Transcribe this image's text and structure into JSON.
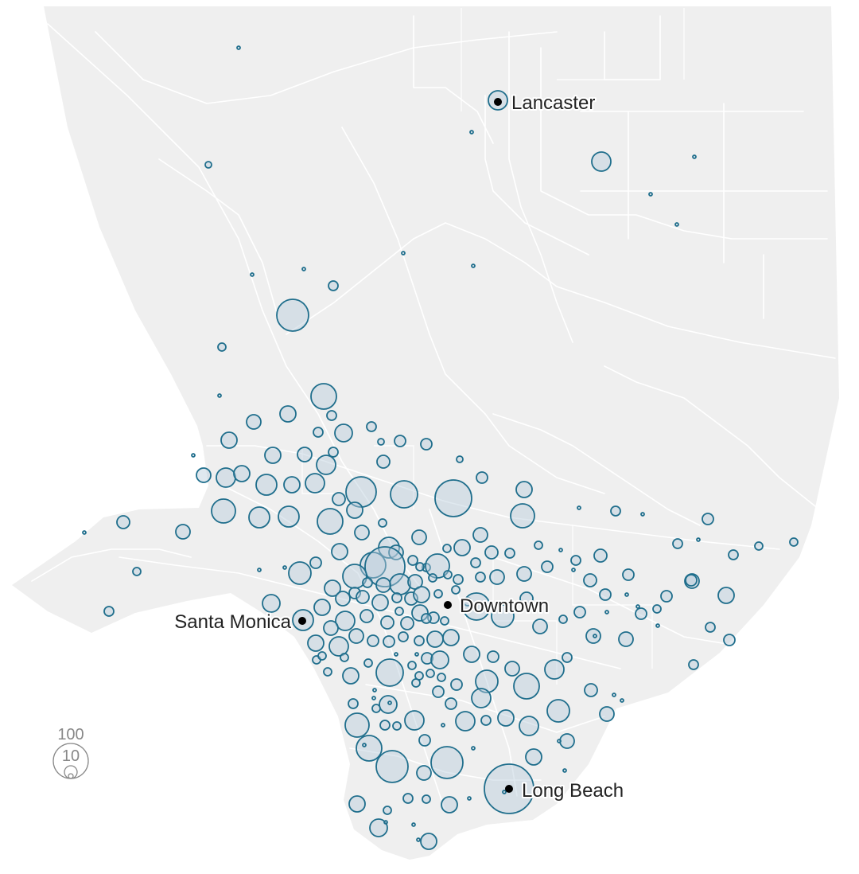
{
  "map": {
    "cities": [
      {
        "name": "Lancaster",
        "label": "Lancaster"
      },
      {
        "name": "Santa Monica",
        "label": "Santa Monica"
      },
      {
        "name": "Downtown",
        "label": "Downtown"
      },
      {
        "name": "Long Beach",
        "label": "Long Beach"
      }
    ],
    "legend": {
      "values": [
        "100",
        "10"
      ]
    },
    "colors": {
      "land": "#efefef",
      "roads": "#ffffff",
      "bubble_fill": "#b7ccdb",
      "bubble_stroke": "#1f6e8c",
      "city_marker": "#000000"
    }
  }
}
